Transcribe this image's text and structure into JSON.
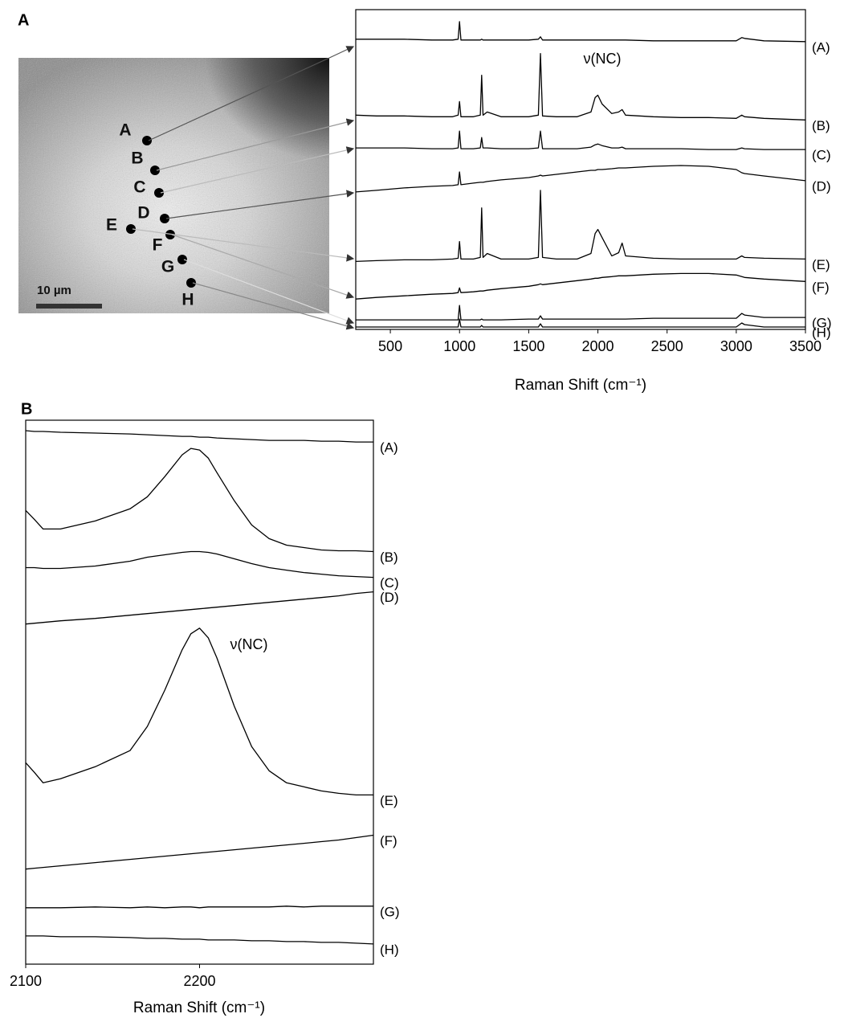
{
  "panels": [
    "A",
    "B"
  ],
  "image": {
    "points": [
      "A",
      "B",
      "C",
      "D",
      "E",
      "F",
      "G",
      "H"
    ],
    "scale_bar": "10 µm"
  },
  "chart_data": [
    {
      "type": "line",
      "x_label": "Raman Shift (cm⁻¹)",
      "annotation": "ν(NC)",
      "xlim": [
        250,
        3500
      ],
      "xticks": [
        500,
        1000,
        1500,
        2000,
        2500,
        3000,
        3500
      ],
      "ylim": [
        0,
        400
      ],
      "x": [
        250,
        400,
        600,
        800,
        950,
        990,
        1000,
        1010,
        1100,
        1150,
        1160,
        1170,
        1200,
        1300,
        1500,
        1570,
        1585,
        1600,
        1700,
        1850,
        1950,
        1980,
        2000,
        2030,
        2100,
        2150,
        2175,
        2200,
        2400,
        2600,
        2800,
        3000,
        3040,
        3060,
        3200,
        3500
      ],
      "series": [
        {
          "name": "(A)",
          "color": "#000000",
          "values": [
            363,
            363,
            363,
            362,
            362,
            363,
            385,
            362,
            362,
            362,
            363,
            362,
            362,
            362,
            362,
            363,
            366,
            362,
            362,
            362,
            362,
            362,
            362,
            362,
            362,
            362,
            362,
            362,
            361,
            361,
            361,
            361,
            365,
            364,
            361,
            360
          ]
        },
        {
          "name": "(B)",
          "color": "#000000",
          "values": [
            268,
            267,
            267,
            266,
            266,
            268,
            285,
            266,
            266,
            268,
            318,
            268,
            272,
            266,
            266,
            268,
            345,
            267,
            266,
            266,
            272,
            290,
            293,
            282,
            270,
            272,
            275,
            268,
            266,
            265,
            265,
            264,
            268,
            266,
            264,
            262
          ]
        },
        {
          "name": "(C)",
          "color": "#000000",
          "values": [
            227,
            227,
            227,
            226,
            226,
            227,
            248,
            226,
            226,
            227,
            240,
            227,
            227,
            226,
            226,
            227,
            248,
            226,
            226,
            226,
            228,
            231,
            232,
            230,
            227,
            227,
            228,
            226,
            226,
            226,
            225,
            225,
            227,
            226,
            225,
            225
          ]
        },
        {
          "name": "(D)",
          "color": "#000000",
          "values": [
            172,
            174,
            177,
            179,
            180,
            181,
            197,
            181,
            183,
            184,
            184,
            184,
            185,
            187,
            190,
            192,
            193,
            192,
            194,
            197,
            199,
            199,
            200,
            200,
            201,
            202,
            202,
            202,
            204,
            205,
            204,
            200,
            196,
            195,
            192,
            186
          ]
        },
        {
          "name": "(E)",
          "color": "#000000",
          "values": [
            85,
            86,
            87,
            87,
            88,
            89,
            110,
            88,
            88,
            90,
            152,
            90,
            95,
            88,
            88,
            90,
            174,
            90,
            88,
            88,
            95,
            120,
            125,
            115,
            92,
            96,
            108,
            92,
            89,
            88,
            88,
            88,
            92,
            90,
            89,
            88
          ]
        },
        {
          "name": "(F)",
          "color": "#000000",
          "values": [
            38,
            40,
            42,
            44,
            45,
            46,
            52,
            46,
            47,
            48,
            48,
            48,
            49,
            51,
            54,
            56,
            57,
            56,
            58,
            61,
            63,
            64,
            64,
            65,
            66,
            67,
            67,
            67,
            69,
            70,
            70,
            68,
            66,
            65,
            63,
            60
          ]
        },
        {
          "name": "(G)",
          "color": "#000000",
          "values": [
            12,
            12,
            12,
            12,
            12,
            12,
            30,
            12,
            12,
            12,
            13,
            12,
            12,
            12,
            13,
            13,
            17,
            13,
            13,
            13,
            13,
            13,
            13,
            13,
            13,
            13,
            13,
            13,
            14,
            14,
            14,
            14,
            20,
            18,
            15,
            15
          ]
        },
        {
          "name": "(H)",
          "color": "#000000",
          "values": [
            3,
            3,
            3,
            3,
            3,
            3,
            13,
            3,
            3,
            3,
            5,
            3,
            3,
            3,
            3,
            3,
            7,
            3,
            3,
            3,
            3,
            3,
            3,
            3,
            3,
            3,
            3,
            3,
            3,
            3,
            3,
            3,
            8,
            6,
            3,
            3
          ]
        }
      ]
    },
    {
      "type": "line",
      "x_label": "Raman Shift (cm⁻¹)",
      "annotation": "ν(NC)",
      "xlim": [
        2100,
        2300
      ],
      "xticks": [
        2100,
        2200
      ],
      "ylim": [
        0,
        675
      ],
      "x": [
        2100,
        2105,
        2110,
        2120,
        2140,
        2160,
        2170,
        2180,
        2190,
        2195,
        2200,
        2205,
        2210,
        2220,
        2230,
        2240,
        2250,
        2260,
        2270,
        2280,
        2290,
        2300
      ],
      "series": [
        {
          "name": "(A)",
          "color": "#000000",
          "values": [
            662,
            661,
            661,
            660,
            659,
            658,
            657,
            656,
            655,
            655,
            654,
            654,
            653,
            652,
            651,
            650,
            650,
            650,
            649,
            649,
            648,
            648
          ]
        },
        {
          "name": "(B)",
          "color": "#000000",
          "values": [
            563,
            552,
            540,
            540,
            550,
            565,
            580,
            605,
            632,
            640,
            638,
            628,
            610,
            575,
            545,
            528,
            520,
            517,
            514,
            513,
            513,
            512
          ]
        },
        {
          "name": "(C)",
          "color": "#000000",
          "values": [
            492,
            492,
            491,
            491,
            494,
            500,
            505,
            508,
            511,
            512,
            512,
            511,
            509,
            503,
            497,
            492,
            489,
            486,
            484,
            482,
            481,
            480
          ]
        },
        {
          "name": "(D)",
          "color": "#000000",
          "values": [
            422,
            423,
            424,
            426,
            429,
            433,
            435,
            437,
            439,
            440,
            441,
            442,
            443,
            445,
            447,
            449,
            451,
            453,
            455,
            457,
            460,
            462
          ]
        },
        {
          "name": "(E)",
          "color": "#000000",
          "values": [
            250,
            238,
            225,
            230,
            245,
            265,
            295,
            340,
            390,
            410,
            417,
            405,
            380,
            320,
            270,
            240,
            225,
            220,
            215,
            212,
            210,
            210
          ]
        },
        {
          "name": "(F)",
          "color": "#000000",
          "values": [
            118,
            119,
            120,
            122,
            126,
            130,
            132,
            134,
            136,
            137,
            138,
            139,
            140,
            142,
            144,
            146,
            148,
            150,
            152,
            154,
            157,
            160
          ]
        },
        {
          "name": "(G)",
          "color": "#000000",
          "values": [
            70,
            70,
            70,
            70,
            71,
            70,
            71,
            70,
            71,
            71,
            70,
            71,
            71,
            71,
            71,
            71,
            72,
            71,
            72,
            72,
            72,
            72
          ]
        },
        {
          "name": "(H)",
          "color": "#000000",
          "values": [
            35,
            35,
            35,
            34,
            34,
            33,
            32,
            32,
            31,
            31,
            31,
            30,
            30,
            30,
            29,
            29,
            28,
            28,
            27,
            27,
            26,
            25
          ]
        }
      ]
    }
  ]
}
